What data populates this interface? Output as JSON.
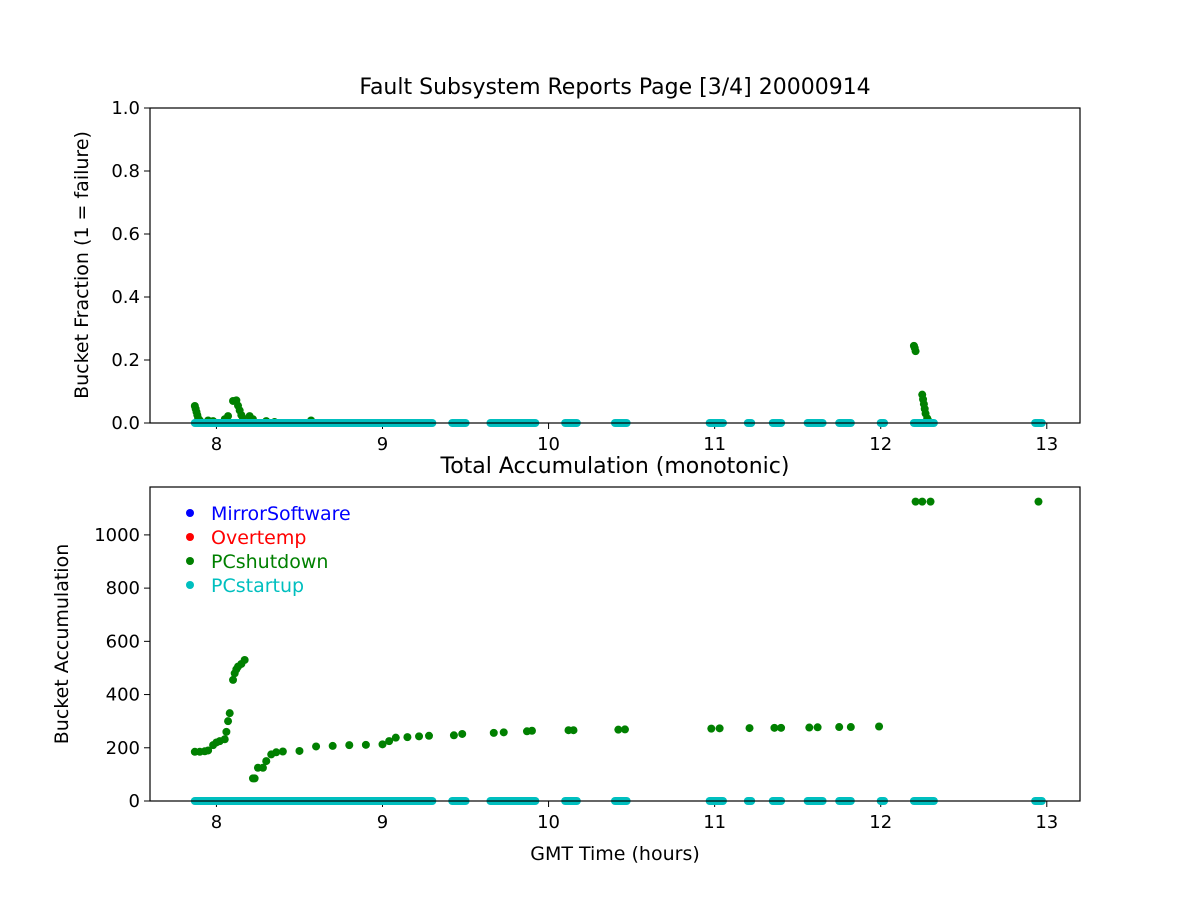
{
  "chart_data": [
    {
      "type": "scatter",
      "title": "Fault Subsystem Reports Page [3/4] 20000914",
      "xlabel": "",
      "ylabel": "Bucket Fraction (1 = failure)",
      "xlim": [
        7.6,
        13.2
      ],
      "ylim": [
        0.0,
        1.0
      ],
      "xticks": [
        "8",
        "9",
        "10",
        "11",
        "12",
        "13"
      ],
      "yticks": [
        "0.0",
        "0.2",
        "0.4",
        "0.6",
        "0.8",
        "1.0"
      ],
      "series": [
        {
          "name": "PCshutdown",
          "color": "#008000",
          "points": [
            [
              7.87,
              0.054
            ],
            [
              7.875,
              0.045
            ],
            [
              7.88,
              0.035
            ],
            [
              7.885,
              0.025
            ],
            [
              7.89,
              0.015
            ],
            [
              7.9,
              0.008
            ],
            [
              7.95,
              0.008
            ],
            [
              7.98,
              0.006
            ],
            [
              8.05,
              0.012
            ],
            [
              8.07,
              0.022
            ],
            [
              8.1,
              0.07
            ],
            [
              8.12,
              0.072
            ],
            [
              8.13,
              0.055
            ],
            [
              8.14,
              0.04
            ],
            [
              8.15,
              0.025
            ],
            [
              8.16,
              0.015
            ],
            [
              8.2,
              0.022
            ],
            [
              8.22,
              0.012
            ],
            [
              8.3,
              0.006
            ],
            [
              8.35,
              0.003
            ],
            [
              8.57,
              0.008
            ],
            [
              8.7,
              0.0
            ],
            [
              9.0,
              0.0
            ],
            [
              12.2,
              0.245
            ],
            [
              12.205,
              0.238
            ],
            [
              12.21,
              0.228
            ],
            [
              12.25,
              0.09
            ],
            [
              12.255,
              0.075
            ],
            [
              12.26,
              0.06
            ],
            [
              12.265,
              0.045
            ],
            [
              12.27,
              0.03
            ],
            [
              12.28,
              0.015
            ],
            [
              12.29,
              0.005
            ],
            [
              12.95,
              0.0
            ]
          ]
        },
        {
          "name": "PCstartup",
          "color": "#00BFBF",
          "ranges": [
            [
              7.87,
              9.3
            ],
            [
              9.42,
              9.5
            ],
            [
              9.65,
              9.92
            ],
            [
              10.1,
              10.17
            ],
            [
              10.4,
              10.47
            ],
            [
              10.97,
              11.05
            ],
            [
              11.2,
              11.22
            ],
            [
              11.35,
              11.4
            ],
            [
              11.56,
              11.65
            ],
            [
              11.75,
              11.82
            ],
            [
              12.0,
              12.02
            ],
            [
              12.2,
              12.32
            ],
            [
              12.93,
              12.97
            ]
          ],
          "value": 0.0
        }
      ]
    },
    {
      "type": "scatter",
      "title": "Total Accumulation (monotonic)",
      "xlabel": "GMT Time (hours)",
      "ylabel": "Bucket Accumulation",
      "xlim": [
        7.6,
        13.2
      ],
      "ylim": [
        0,
        1180
      ],
      "xticks": [
        "8",
        "9",
        "10",
        "11",
        "12",
        "13"
      ],
      "yticks": [
        "0",
        "200",
        "400",
        "600",
        "800",
        "1000"
      ],
      "legend_position": "top-left",
      "legend": [
        {
          "label": "MirrorSoftware",
          "color": "#0000FF"
        },
        {
          "label": "Overtemp",
          "color": "#FF0000"
        },
        {
          "label": "PCshutdown",
          "color": "#008000"
        },
        {
          "label": "PCstartup",
          "color": "#00BFBF"
        }
      ],
      "series": [
        {
          "name": "PCshutdown",
          "color": "#008000",
          "points": [
            [
              7.87,
              185
            ],
            [
              7.9,
              185
            ],
            [
              7.93,
              187
            ],
            [
              7.95,
              190
            ],
            [
              7.98,
              210
            ],
            [
              8.0,
              220
            ],
            [
              8.02,
              225
            ],
            [
              8.05,
              232
            ],
            [
              8.06,
              260
            ],
            [
              8.07,
              300
            ],
            [
              8.08,
              330
            ],
            [
              8.1,
              455
            ],
            [
              8.11,
              480
            ],
            [
              8.12,
              495
            ],
            [
              8.13,
              505
            ],
            [
              8.15,
              515
            ],
            [
              8.17,
              530
            ],
            [
              8.22,
              85
            ],
            [
              8.23,
              85
            ],
            [
              8.25,
              125
            ],
            [
              8.28,
              125
            ],
            [
              8.3,
              150
            ],
            [
              8.33,
              175
            ],
            [
              8.36,
              183
            ],
            [
              8.4,
              186
            ],
            [
              8.5,
              188
            ],
            [
              8.6,
              205
            ],
            [
              8.7,
              207
            ],
            [
              8.8,
              210
            ],
            [
              8.9,
              211
            ],
            [
              9.0,
              213
            ],
            [
              9.04,
              225
            ],
            [
              9.08,
              238
            ],
            [
              9.15,
              240
            ],
            [
              9.22,
              243
            ],
            [
              9.28,
              245
            ],
            [
              9.43,
              247
            ],
            [
              9.48,
              252
            ],
            [
              9.67,
              256
            ],
            [
              9.73,
              258
            ],
            [
              9.87,
              262
            ],
            [
              9.9,
              264
            ],
            [
              10.12,
              266
            ],
            [
              10.15,
              266
            ],
            [
              10.42,
              268
            ],
            [
              10.46,
              269
            ],
            [
              10.98,
              272
            ],
            [
              11.03,
              273
            ],
            [
              11.21,
              274
            ],
            [
              11.36,
              275
            ],
            [
              11.4,
              275
            ],
            [
              11.57,
              276
            ],
            [
              11.62,
              277
            ],
            [
              11.75,
              278
            ],
            [
              11.82,
              278
            ],
            [
              11.99,
              280
            ],
            [
              12.21,
              1125
            ],
            [
              12.25,
              1125
            ],
            [
              12.3,
              1125
            ],
            [
              12.95,
              1125
            ]
          ]
        },
        {
          "name": "PCstartup",
          "color": "#00BFBF",
          "ranges": [
            [
              7.87,
              9.3
            ],
            [
              9.42,
              9.5
            ],
            [
              9.65,
              9.92
            ],
            [
              10.1,
              10.17
            ],
            [
              10.4,
              10.47
            ],
            [
              10.97,
              11.05
            ],
            [
              11.2,
              11.22
            ],
            [
              11.35,
              11.4
            ],
            [
              11.56,
              11.65
            ],
            [
              11.75,
              11.82
            ],
            [
              12.0,
              12.02
            ],
            [
              12.2,
              12.32
            ],
            [
              12.93,
              12.97
            ]
          ],
          "value": 0
        }
      ]
    }
  ]
}
